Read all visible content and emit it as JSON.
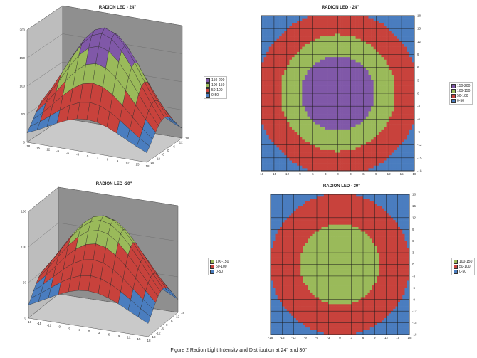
{
  "figure_caption": "Figure 2 Radion Light Intensity and Distribution at 24\" and 30\"",
  "colors": {
    "band_0_50": "#4a7dbf",
    "band_50_100": "#c8423c",
    "band_100_150": "#9aba5a",
    "band_150_200": "#8058a8",
    "wall": "#8f8f8f",
    "floor": "#c9c9c9",
    "grid": "#1a1a1a"
  },
  "chart_data": [
    {
      "type": "heatmap",
      "id": "surface_24",
      "view": "3d-surface",
      "title": "RADION LED - 24\"",
      "z_ticks": [
        "200",
        "150",
        "100",
        "50",
        "0"
      ],
      "x_ticks": [
        "-18",
        "-15",
        "-12",
        "-9",
        "-6",
        "-3",
        "0",
        "3",
        "6",
        "9",
        "12",
        "15",
        "18"
      ],
      "y_ticks": [
        "18",
        "12",
        "6",
        "0",
        "-6",
        "-12",
        "-18"
      ],
      "zlim": [
        0,
        200
      ],
      "x_range": [
        -18,
        18
      ],
      "y_range": [
        -18,
        18
      ],
      "peak": 195,
      "legend": [
        "150-200",
        "100-150",
        "50-100",
        "0-50"
      ]
    },
    {
      "type": "heatmap",
      "id": "contour_24",
      "view": "contour",
      "title": "RADION LED - 24\"",
      "x_ticks": [
        "-18",
        "-15",
        "-12",
        "-9",
        "-6",
        "-3",
        "0",
        "3",
        "6",
        "9",
        "12",
        "15",
        "18"
      ],
      "y_ticks": [
        "18",
        "15",
        "12",
        "9",
        "6",
        "3",
        "0",
        "-3",
        "-6",
        "-9",
        "-12",
        "-15",
        "-18"
      ],
      "x_range": [
        -18,
        18
      ],
      "y_range": [
        -18,
        18
      ],
      "legend": [
        "150-200",
        "100-150",
        "50-100",
        "0-50"
      ]
    },
    {
      "type": "heatmap",
      "id": "surface_30",
      "view": "3d-surface",
      "title": "RADION LED -30\"",
      "z_ticks": [
        "150",
        "100",
        "50",
        "0"
      ],
      "x_ticks": [
        "-18",
        "-15",
        "-12",
        "-9",
        "-6",
        "-3",
        "0",
        "3",
        "6",
        "9",
        "12",
        "15",
        "18"
      ],
      "y_ticks": [
        "18",
        "12",
        "6",
        "0",
        "-6",
        "-12",
        "-18"
      ],
      "zlim": [
        0,
        150
      ],
      "x_range": [
        -18,
        18
      ],
      "y_range": [
        -18,
        18
      ],
      "peak": 135,
      "legend": [
        "100-150",
        "50-100",
        "0-50"
      ]
    },
    {
      "type": "heatmap",
      "id": "contour_30",
      "view": "contour",
      "title": "RADION LED - 30\"",
      "x_ticks": [
        "-18",
        "-15",
        "-12",
        "-9",
        "-6",
        "-3",
        "0",
        "3",
        "6",
        "9",
        "12",
        "15",
        "18"
      ],
      "y_ticks": [
        "18",
        "15",
        "12",
        "9",
        "6",
        "3",
        "0",
        "-3",
        "-6",
        "-9",
        "-12",
        "-15",
        "-18"
      ],
      "x_range": [
        -18,
        18
      ],
      "y_range": [
        -18,
        18
      ],
      "legend": [
        "100-150",
        "50-100",
        "0-50"
      ]
    }
  ]
}
